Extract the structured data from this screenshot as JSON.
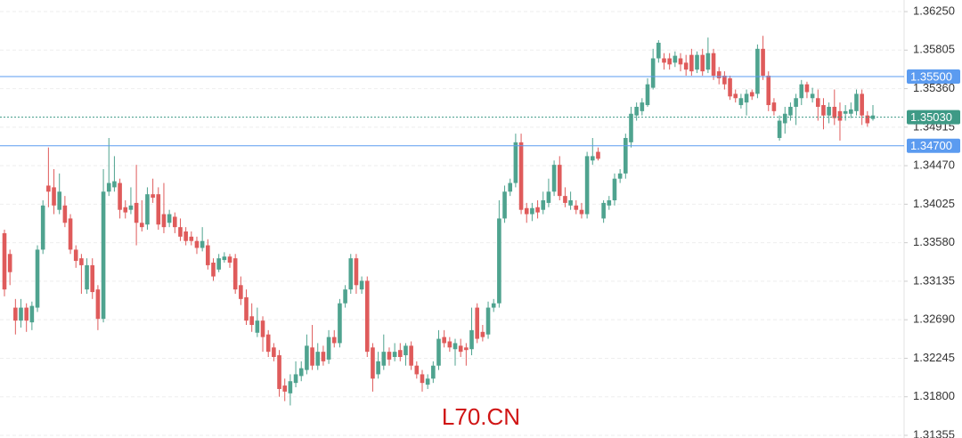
{
  "chart_data": {
    "type": "candlestick",
    "watermark": "L70.CN",
    "up_color": "#4fa38f",
    "down_color": "#df5b5b",
    "ylim": [
      1.31324,
      1.36384
    ],
    "yticks": [
      {
        "value": 1.3625,
        "label": "1.36250"
      },
      {
        "value": 1.35805,
        "label": "1.35805"
      },
      {
        "value": 1.3536,
        "label": "1.35360"
      },
      {
        "value": 1.34915,
        "label": "1.34915"
      },
      {
        "value": 1.3447,
        "label": "1.34470"
      },
      {
        "value": 1.34025,
        "label": "1.34025"
      },
      {
        "value": 1.3358,
        "label": "1.33580"
      },
      {
        "value": 1.33135,
        "label": "1.33135"
      },
      {
        "value": 1.3269,
        "label": "1.32690"
      },
      {
        "value": 1.32245,
        "label": "1.32245"
      },
      {
        "value": 1.318,
        "label": "1.31800"
      },
      {
        "value": 1.31355,
        "label": "1.31355"
      }
    ],
    "grid": true,
    "price_lines": [
      {
        "value": 1.355,
        "label": "1.35500",
        "color": "#5b9bf0",
        "style": "solid"
      },
      {
        "value": 1.3503,
        "label": "1.35030",
        "color": "#3e9a86",
        "style": "dotted"
      },
      {
        "value": 1.347,
        "label": "1.34700",
        "color": "#5b9bf0",
        "style": "solid"
      }
    ],
    "open": [
      1.3369,
      1.3345,
      1.3283,
      1.3268,
      1.3283,
      1.3266,
      1.3283,
      1.335,
      1.3424,
      1.3422,
      1.3396,
      1.3401,
      1.3386,
      1.335,
      1.334,
      1.3304,
      1.3332,
      1.3304,
      1.327,
      1.3417,
      1.3422,
      1.3427,
      1.3399,
      1.3396,
      1.3404,
      1.3381,
      1.3379,
      1.3414,
      1.3414,
      1.3391,
      1.3381,
      1.3388,
      1.3376,
      1.3371,
      1.3365,
      1.336,
      1.3352,
      1.3355,
      1.3335,
      1.3327,
      1.3338,
      1.3342,
      1.334,
      1.3309,
      1.3295,
      1.3273,
      1.3254,
      1.3268,
      1.3252,
      1.3237,
      1.3228,
      1.3193,
      1.3184,
      1.3196,
      1.3204,
      1.3211,
      1.3237,
      1.3216,
      1.3232,
      1.3223,
      1.3249,
      1.3242,
      1.3288,
      1.3304,
      1.334,
      1.3304,
      1.3314,
      1.3237,
      1.3206,
      1.3216,
      1.3232,
      1.3226,
      1.3234,
      1.3228,
      1.3239,
      1.3216,
      1.3206,
      1.3194,
      1.3201,
      1.3216,
      1.3249,
      1.3244,
      1.3235,
      1.3239,
      1.3237,
      1.3235,
      1.3283,
      1.3255,
      1.3252,
      1.3283,
      1.3288,
      1.3386,
      1.3417,
      1.3427,
      1.3474,
      1.3398,
      1.3391,
      1.3399,
      1.3396,
      1.3404,
      1.3417,
      1.3448,
      1.3412,
      1.3401,
      1.3401,
      1.3396,
      1.3391,
      1.3453,
      1.3463,
      1.3386,
      1.3401,
      1.3407,
      1.3432,
      1.3438,
      1.3474,
      1.3505,
      1.351,
      1.3517,
      1.3537,
      1.3571,
      1.3571,
      1.3571,
      1.3566,
      1.3571,
      1.3566,
      1.3575,
      1.3558,
      1.3575,
      1.3558,
      1.3577,
      1.3556,
      1.3551,
      1.3548,
      1.353,
      1.3517,
      1.352,
      1.3532,
      1.353,
      1.3582,
      1.3551,
      1.352,
      1.3479,
      1.3496,
      1.3505,
      1.3515,
      1.3525,
      1.3541,
      1.3525,
      1.3525,
      1.3517,
      1.3505,
      1.3515,
      1.351,
      1.3507,
      1.3507,
      1.351,
      1.353,
      1.3505,
      1.3501
    ],
    "high": [
      1.3373,
      1.335,
      1.3293,
      1.3293,
      1.3288,
      1.329,
      1.3355,
      1.3407,
      1.3468,
      1.3443,
      1.3438,
      1.3412,
      1.3391,
      1.3355,
      1.3345,
      1.334,
      1.334,
      1.3309,
      1.3443,
      1.3479,
      1.3458,
      1.3432,
      1.3407,
      1.3422,
      1.3448,
      1.3407,
      1.3422,
      1.3432,
      1.3422,
      1.3427,
      1.3396,
      1.3393,
      1.3386,
      1.3376,
      1.3371,
      1.3365,
      1.3376,
      1.3362,
      1.334,
      1.3345,
      1.3347,
      1.3345,
      1.3345,
      1.3319,
      1.3304,
      1.3288,
      1.3283,
      1.3273,
      1.3257,
      1.3242,
      1.3234,
      1.3201,
      1.3206,
      1.3221,
      1.3221,
      1.3252,
      1.3263,
      1.3242,
      1.3239,
      1.3257,
      1.3257,
      1.3293,
      1.3309,
      1.3345,
      1.3345,
      1.3319,
      1.3319,
      1.3242,
      1.3232,
      1.3252,
      1.3237,
      1.3242,
      1.3242,
      1.3242,
      1.3244,
      1.3221,
      1.3211,
      1.3206,
      1.3221,
      1.3257,
      1.3257,
      1.3249,
      1.3247,
      1.3247,
      1.3242,
      1.3283,
      1.3288,
      1.3263,
      1.329,
      1.3293,
      1.3407,
      1.3424,
      1.3432,
      1.3484,
      1.3484,
      1.3404,
      1.3404,
      1.3407,
      1.3417,
      1.3432,
      1.3453,
      1.3458,
      1.3422,
      1.3417,
      1.3407,
      1.3404,
      1.3463,
      1.3479,
      1.3468,
      1.3407,
      1.3412,
      1.3438,
      1.3443,
      1.3484,
      1.3515,
      1.352,
      1.3525,
      1.3548,
      1.3582,
      1.3592,
      1.3577,
      1.3577,
      1.3579,
      1.3577,
      1.3575,
      1.3582,
      1.3579,
      1.3582,
      1.3595,
      1.3582,
      1.3561,
      1.3556,
      1.3551,
      1.3535,
      1.353,
      1.3535,
      1.3535,
      1.3587,
      1.3597,
      1.3556,
      1.3525,
      1.3505,
      1.3515,
      1.352,
      1.353,
      1.3546,
      1.3544,
      1.3537,
      1.3535,
      1.3525,
      1.352,
      1.3535,
      1.352,
      1.3517,
      1.352,
      1.3535,
      1.3535,
      1.351,
      1.3517
    ],
    "low": [
      1.3296,
      1.3309,
      1.3252,
      1.326,
      1.3255,
      1.3257,
      1.3278,
      1.3345,
      1.3399,
      1.3391,
      1.3391,
      1.3376,
      1.3345,
      1.3329,
      1.3299,
      1.3299,
      1.3293,
      1.3257,
      1.3266,
      1.3412,
      1.3417,
      1.3386,
      1.3386,
      1.3391,
      1.3355,
      1.3371,
      1.3373,
      1.3404,
      1.3373,
      1.3369,
      1.3376,
      1.3369,
      1.336,
      1.3355,
      1.3355,
      1.3345,
      1.3348,
      1.3327,
      1.3314,
      1.3324,
      1.3335,
      1.3329,
      1.3299,
      1.3286,
      1.3263,
      1.3255,
      1.3249,
      1.3232,
      1.3226,
      1.3221,
      1.318,
      1.3175,
      1.317,
      1.3191,
      1.3198,
      1.3206,
      1.3211,
      1.3211,
      1.3216,
      1.3218,
      1.3237,
      1.3237,
      1.3283,
      1.3299,
      1.3299,
      1.3299,
      1.3226,
      1.3186,
      1.3201,
      1.3211,
      1.3216,
      1.3221,
      1.3221,
      1.3216,
      1.3211,
      1.3201,
      1.3186,
      1.3189,
      1.3196,
      1.3211,
      1.3237,
      1.3232,
      1.3216,
      1.3226,
      1.3216,
      1.3228,
      1.3242,
      1.3244,
      1.3247,
      1.3278,
      1.3283,
      1.3381,
      1.3412,
      1.3422,
      1.3391,
      1.3381,
      1.3383,
      1.3386,
      1.3391,
      1.3399,
      1.3412,
      1.3407,
      1.3399,
      1.3396,
      1.3391,
      1.3386,
      1.3386,
      1.3448,
      1.3453,
      1.3381,
      1.3396,
      1.3401,
      1.3427,
      1.3432,
      1.3468,
      1.3499,
      1.3505,
      1.3515,
      1.3535,
      1.3566,
      1.3558,
      1.3558,
      1.3561,
      1.3556,
      1.3551,
      1.3551,
      1.3554,
      1.3551,
      1.3554,
      1.3546,
      1.3541,
      1.3535,
      1.3523,
      1.352,
      1.3513,
      1.3505,
      1.3523,
      1.3525,
      1.3546,
      1.351,
      1.3505,
      1.3476,
      1.3484,
      1.3499,
      1.3494,
      1.3517,
      1.3525,
      1.352,
      1.3499,
      1.3489,
      1.3496,
      1.3494,
      1.3476,
      1.3499,
      1.3502,
      1.3505,
      1.3494,
      1.3492,
      1.3499
    ],
    "close": [
      1.3304,
      1.3324,
      1.3268,
      1.3283,
      1.3268,
      1.3285,
      1.335,
      1.3401,
      1.3417,
      1.3401,
      1.3417,
      1.3381,
      1.335,
      1.3337,
      1.3332,
      1.3332,
      1.3301,
      1.327,
      1.3417,
      1.3427,
      1.3429,
      1.3396,
      1.3393,
      1.3401,
      1.3381,
      1.3376,
      1.3414,
      1.341,
      1.3379,
      1.3376,
      1.3391,
      1.3376,
      1.3365,
      1.336,
      1.336,
      1.3352,
      1.336,
      1.3332,
      1.3319,
      1.334,
      1.3342,
      1.3335,
      1.3304,
      1.3293,
      1.3268,
      1.3263,
      1.3268,
      1.3249,
      1.3232,
      1.3226,
      1.3189,
      1.3186,
      1.3198,
      1.3206,
      1.3213,
      1.3239,
      1.3216,
      1.3232,
      1.3221,
      1.3249,
      1.3242,
      1.3288,
      1.3304,
      1.334,
      1.3309,
      1.3314,
      1.3232,
      1.3201,
      1.3221,
      1.3232,
      1.3223,
      1.3232,
      1.3226,
      1.3239,
      1.3216,
      1.3206,
      1.3196,
      1.3201,
      1.3216,
      1.3247,
      1.3242,
      1.3237,
      1.3242,
      1.3232,
      1.3234,
      1.3257,
      1.3247,
      1.3249,
      1.3283,
      1.3288,
      1.3386,
      1.3417,
      1.3427,
      1.3474,
      1.3396,
      1.3391,
      1.3398,
      1.3393,
      1.3407,
      1.3417,
      1.3448,
      1.3412,
      1.3404,
      1.3407,
      1.3396,
      1.3391,
      1.3458,
      1.3458,
      1.3455,
      1.3404,
      1.3407,
      1.3432,
      1.3438,
      1.3479,
      1.3507,
      1.3515,
      1.352,
      1.3541,
      1.3571,
      1.3589,
      1.3566,
      1.3564,
      1.3574,
      1.3564,
      1.3558,
      1.3556,
      1.3575,
      1.3556,
      1.3577,
      1.3551,
      1.3548,
      1.3541,
      1.3527,
      1.3525,
      1.3525,
      1.353,
      1.3527,
      1.3582,
      1.3551,
      1.3517,
      1.351,
      1.3499,
      1.3507,
      1.3515,
      1.3525,
      1.3541,
      1.3532,
      1.353,
      1.3515,
      1.3505,
      1.3515,
      1.3502,
      1.3499,
      1.351,
      1.3512,
      1.353,
      1.3505,
      1.3496,
      1.3505
    ]
  }
}
